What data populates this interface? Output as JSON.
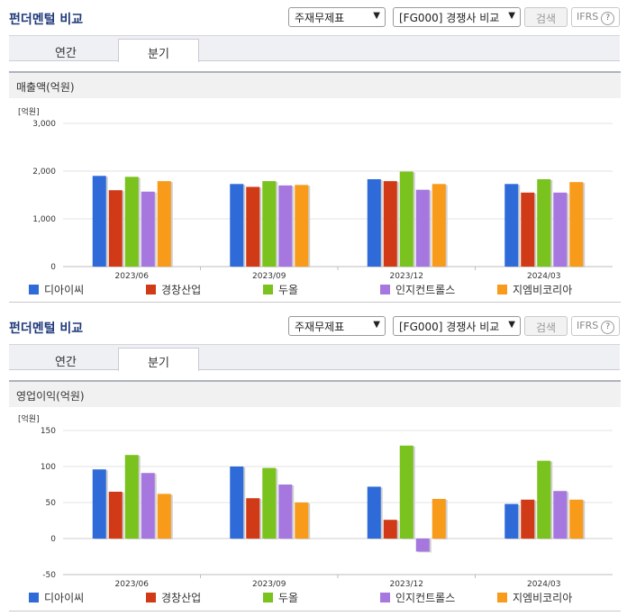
{
  "common": {
    "title": "펀더멘털 비교",
    "select1": "주재무제표",
    "select2": "[FG000] 경쟁사 비교",
    "search_label": "검색",
    "ifrs_label": "IFRS",
    "help_glyph": "?",
    "tabs": [
      "연간",
      "분기"
    ]
  },
  "panels": [
    {
      "section_title": "매출액(억원)"
    },
    {
      "section_title": "영업이익(억원)"
    }
  ],
  "legend": [
    "디아이씨",
    "경창산업",
    "두올",
    "인지컨트롤스",
    "지엠비코리아"
  ],
  "colors": [
    "#2f6bd8",
    "#d03a16",
    "#7ac21d",
    "#a678df",
    "#f89a1a"
  ],
  "chart_data": [
    {
      "type": "bar",
      "unit_label": "[억원]",
      "categories": [
        "2023/06",
        "2023/09",
        "2023/12",
        "2024/03"
      ],
      "ylim": [
        0,
        3000
      ],
      "yticks": [
        0,
        1000,
        2000,
        3000
      ],
      "ytick_labels": [
        "0",
        "1,000",
        "2,000",
        "3,000"
      ],
      "series": [
        {
          "name": "디아이씨",
          "values": [
            1900,
            1730,
            1830,
            1730
          ]
        },
        {
          "name": "경창산업",
          "values": [
            1600,
            1670,
            1790,
            1550
          ]
        },
        {
          "name": "두올",
          "values": [
            1880,
            1790,
            1990,
            1830
          ]
        },
        {
          "name": "인지컨트롤스",
          "values": [
            1570,
            1700,
            1610,
            1550
          ]
        },
        {
          "name": "지엠비코리아",
          "values": [
            1790,
            1710,
            1730,
            1770
          ]
        }
      ]
    },
    {
      "type": "bar",
      "unit_label": "[억원]",
      "categories": [
        "2023/06",
        "2023/09",
        "2023/12",
        "2024/03"
      ],
      "ylim": [
        -50,
        150
      ],
      "yticks": [
        -50,
        0,
        50,
        100,
        150
      ],
      "ytick_labels": [
        "-50",
        "0",
        "50",
        "100",
        "150"
      ],
      "series": [
        {
          "name": "디아이씨",
          "values": [
            96,
            100,
            72,
            48
          ]
        },
        {
          "name": "경창산업",
          "values": [
            65,
            56,
            26,
            54
          ]
        },
        {
          "name": "두올",
          "values": [
            116,
            98,
            129,
            108
          ]
        },
        {
          "name": "인지컨트롤스",
          "values": [
            91,
            75,
            -18,
            66
          ]
        },
        {
          "name": "지엠비코리아",
          "values": [
            62,
            50,
            55,
            54
          ]
        }
      ]
    }
  ]
}
